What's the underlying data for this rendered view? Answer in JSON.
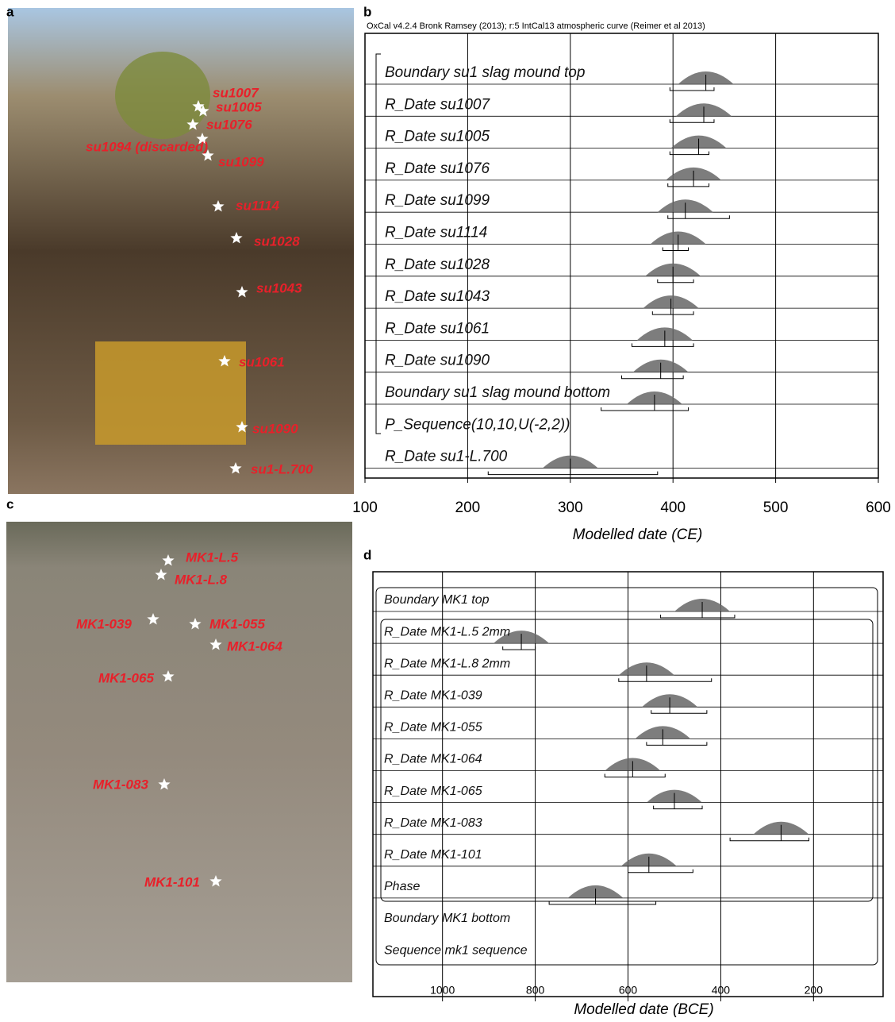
{
  "panel_letters": [
    "a",
    "b",
    "c",
    "d"
  ],
  "photo_a": {
    "labels": [
      "su1007",
      "su1005",
      "su1076",
      "su1094 (discarded)",
      "su1099",
      "su1114",
      "su1028",
      "su1043",
      "su1061",
      "su1090",
      "su1-L.700"
    ]
  },
  "photo_c": {
    "labels": [
      "MK1-L.5",
      "MK1-L.8",
      "MK1-039",
      "MK1-055",
      "MK1-064",
      "MK1-065",
      "MK1-083",
      "MK1-101"
    ]
  },
  "chart_data": [
    {
      "type": "interval",
      "subtitle": "OxCal v4.2.4 Bronk Ramsey (2013); r:5 IntCal13 atmospheric curve (Reimer et al 2013)",
      "x_label": "Modelled date (CE)",
      "xlim": [
        100,
        600
      ],
      "xticks": [
        100,
        200,
        300,
        400,
        500,
        600
      ],
      "categories": [
        "Boundary su1 slag mound top",
        "R_Date su1007",
        "R_Date su1005",
        "R_Date su1076",
        "R_Date su1099",
        "R_Date su1114",
        "R_Date su1028",
        "R_Date su1043",
        "R_Date su1061",
        "R_Date su1090",
        "Boundary su1 slag mound bottom",
        "P_Sequence(10,10,U(-2,2))",
        "R_Date su1-L.700"
      ],
      "values": [
        432,
        430,
        425,
        420,
        412,
        405,
        400,
        398,
        392,
        388,
        382,
        null,
        300
      ],
      "ranges": [
        [
          397,
          440
        ],
        [
          397,
          440
        ],
        [
          397,
          435
        ],
        [
          395,
          435
        ],
        [
          395,
          455
        ],
        [
          390,
          415
        ],
        [
          385,
          420
        ],
        [
          380,
          420
        ],
        [
          360,
          420
        ],
        [
          350,
          410
        ],
        [
          330,
          415
        ],
        null,
        [
          220,
          385
        ]
      ],
      "color": "#666666",
      "grid": true
    },
    {
      "type": "interval",
      "x_label": "Modelled date (BCE)",
      "xlim": [
        1150,
        50
      ],
      "xticks": [
        1000,
        800,
        600,
        400,
        200
      ],
      "categories": [
        "Boundary MK1 top",
        "R_Date MK1-L.5 2mm",
        "R_Date MK1-L.8 2mm",
        "R_Date MK1-039",
        "R_Date MK1-055",
        "R_Date MK1-064",
        "R_Date MK1-065",
        "R_Date MK1-083",
        "R_Date MK1-101",
        "Phase",
        "Boundary MK1 bottom",
        "Sequence mk1 sequence"
      ],
      "values": [
        440,
        830,
        560,
        510,
        525,
        590,
        500,
        270,
        555,
        670,
        null,
        null
      ],
      "ranges": [
        [
          530,
          370
        ],
        [
          870,
          800
        ],
        [
          620,
          420
        ],
        [
          550,
          430
        ],
        [
          560,
          430
        ],
        [
          650,
          520
        ],
        [
          545,
          440
        ],
        [
          380,
          210
        ],
        [
          600,
          460
        ],
        [
          770,
          540
        ],
        null,
        null
      ],
      "color": "#666666",
      "grid": true
    }
  ]
}
